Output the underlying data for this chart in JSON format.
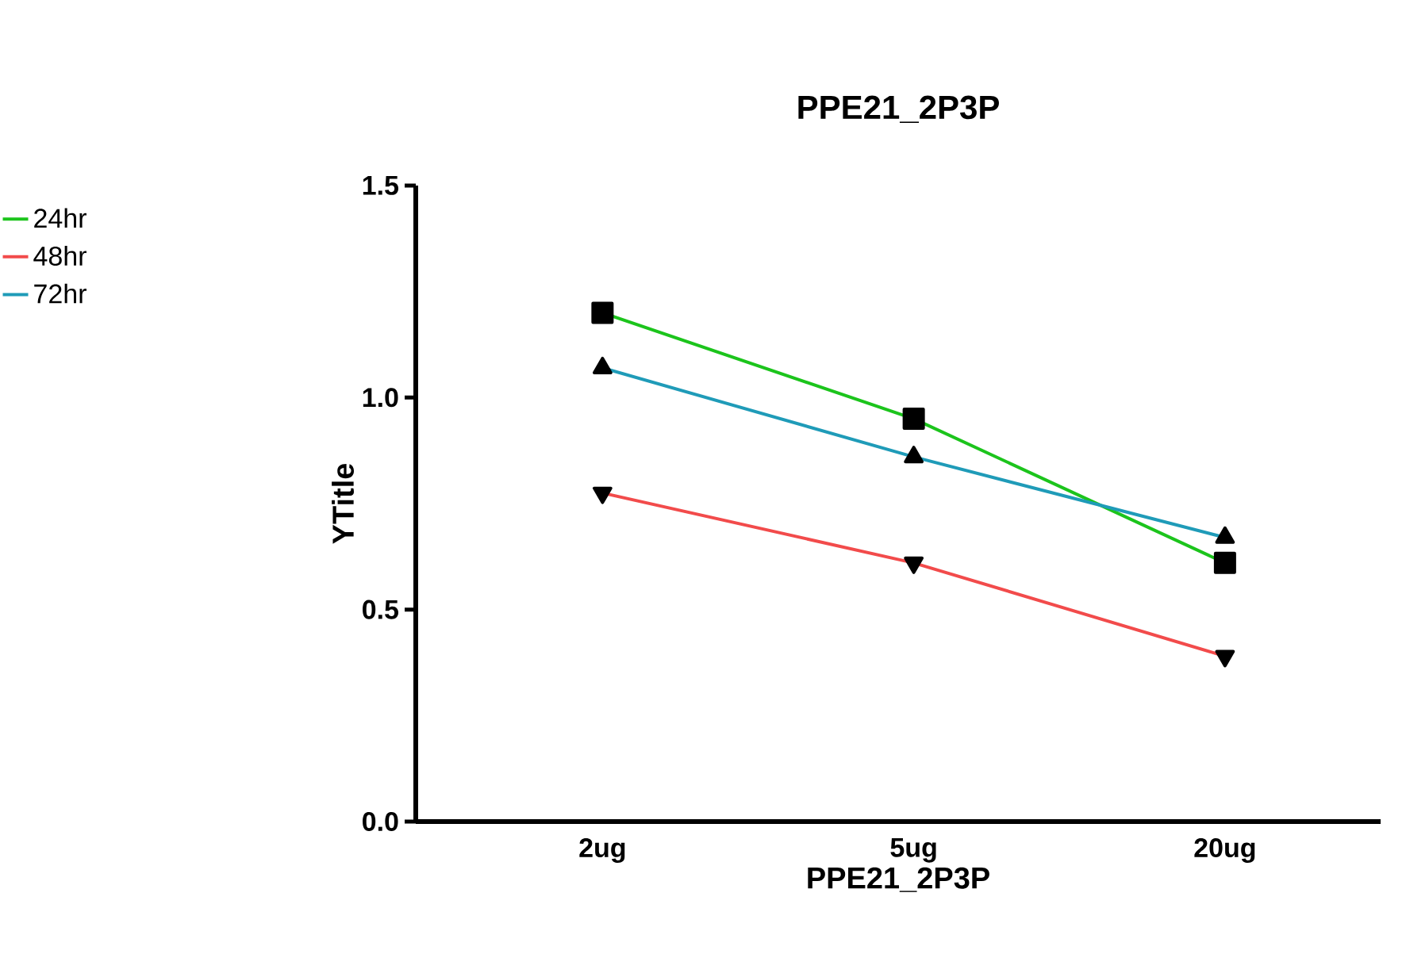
{
  "chart_data": {
    "type": "line",
    "title": "PPE21_2P3P",
    "xlabel": "PPE21_2P3P",
    "ylabel": "YTitle",
    "categories": [
      "2ug",
      "5ug",
      "20ug"
    ],
    "series": [
      {
        "name": "24hr",
        "color": "#1cc41c",
        "marker": "square",
        "values": [
          1.2,
          0.95,
          0.61
        ]
      },
      {
        "name": "48hr",
        "color": "#f24b4b",
        "marker": "triangle-down",
        "values": [
          0.775,
          0.61,
          0.39
        ]
      },
      {
        "name": "72hr",
        "color": "#1f9bb8",
        "marker": "triangle",
        "values": [
          1.07,
          0.86,
          0.67
        ]
      }
    ],
    "ylim": [
      0,
      1.5
    ],
    "yticks": [
      {
        "value": 0,
        "label": "0.0"
      },
      {
        "value": 0.5,
        "label": "0.5"
      },
      {
        "value": 1,
        "label": "1.0"
      },
      {
        "value": 1.5,
        "label": "1.5"
      }
    ],
    "legend": "left",
    "line_style": "solid"
  }
}
